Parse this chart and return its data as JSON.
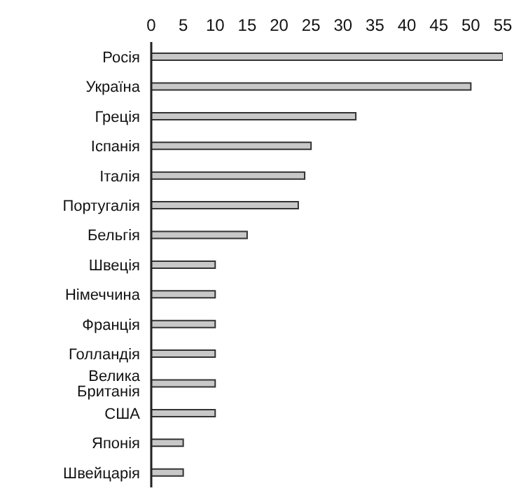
{
  "chart_data": {
    "type": "bar",
    "orientation": "horizontal",
    "categories": [
      "Росія",
      "Україна",
      "Греція",
      "Іспанія",
      "Італія",
      "Португалія",
      "Бельгія",
      "Швеція",
      "Німеччина",
      "Франція",
      "Голландія",
      "Велика Британія",
      "США",
      "Японія",
      "Швейцарія"
    ],
    "values": [
      55,
      50,
      32,
      25,
      24,
      23,
      15,
      10,
      10,
      10,
      10,
      10,
      10,
      5,
      5
    ],
    "color": "#c8c8c8",
    "xlim": [
      0,
      55
    ],
    "xticks": [
      0,
      5,
      10,
      15,
      20,
      25,
      30,
      35,
      40,
      45,
      50,
      55
    ],
    "grid": false
  }
}
